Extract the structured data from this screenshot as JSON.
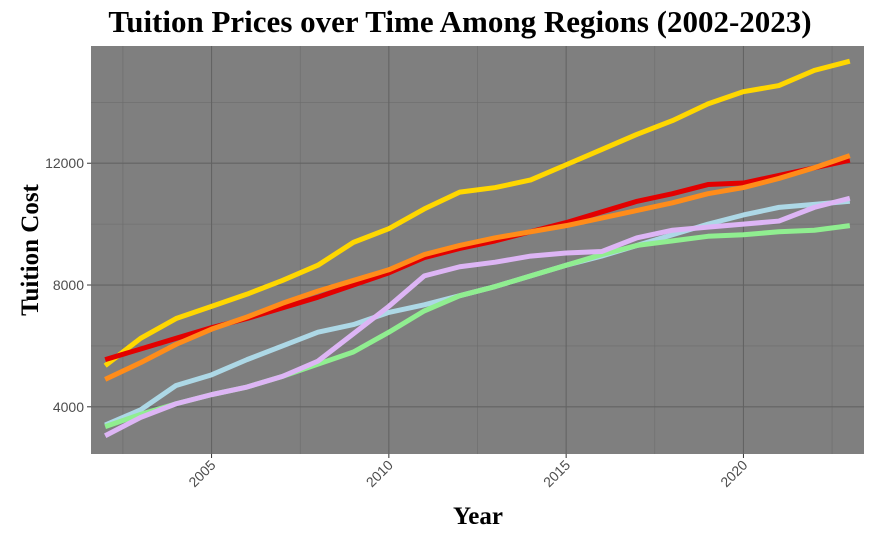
{
  "chart_data": {
    "type": "line",
    "title": "Tuition Prices over Time Among Regions (2002-2023)",
    "xlabel": "Year",
    "ylabel": "Tuition Cost",
    "xlim": [
      2001.6,
      2023.4
    ],
    "ylim": [
      2450,
      15850
    ],
    "xticks": [
      2005,
      2010,
      2015,
      2020
    ],
    "yticks": [
      4000,
      8000,
      12000
    ],
    "grid": true,
    "legend": "none",
    "panel_background": "#7f7f7f",
    "x": [
      2002,
      2003,
      2004,
      2005,
      2006,
      2007,
      2008,
      2009,
      2010,
      2011,
      2012,
      2013,
      2014,
      2015,
      2016,
      2017,
      2018,
      2019,
      2020,
      2021,
      2022,
      2023
    ],
    "series": [
      {
        "color": "#FFD700",
        "values": [
          5350,
          6250,
          6900,
          7300,
          7700,
          8150,
          8650,
          9400,
          9850,
          10500,
          11050,
          11200,
          11450,
          11950,
          12450,
          12950,
          13400,
          13950,
          14350,
          14550,
          15050,
          15350
        ]
      },
      {
        "color": "#E30000",
        "values": [
          5550,
          5900,
          6250,
          6600,
          6900,
          7250,
          7600,
          8000,
          8400,
          8900,
          9200,
          9450,
          9750,
          10050,
          10400,
          10750,
          11000,
          11300,
          11350,
          11600,
          11850,
          12100
        ]
      },
      {
        "color": "#FF8C1A",
        "values": [
          4900,
          5450,
          6050,
          6550,
          6950,
          7400,
          7800,
          8150,
          8500,
          9000,
          9300,
          9550,
          9750,
          9950,
          10200,
          10450,
          10700,
          11000,
          11200,
          11500,
          11850,
          12250
        ]
      },
      {
        "color": "#ADD8E6",
        "values": [
          3400,
          3900,
          4700,
          5050,
          5550,
          6000,
          6450,
          6700,
          7100,
          7350,
          7650,
          7950,
          8300,
          8650,
          8950,
          9300,
          9650,
          10000,
          10300,
          10550,
          10650,
          10750
        ]
      },
      {
        "color": "#90EE90",
        "values": [
          3350,
          3750,
          4100,
          4400,
          4650,
          5000,
          5400,
          5800,
          6450,
          7150,
          7650,
          7950,
          8300,
          8650,
          9000,
          9300,
          9450,
          9600,
          9650,
          9750,
          9800,
          9950
        ]
      },
      {
        "color": "#DDB5F5",
        "values": [
          3050,
          3650,
          4100,
          4400,
          4650,
          5000,
          5500,
          6400,
          7300,
          8300,
          8600,
          8750,
          8950,
          9050,
          9100,
          9550,
          9800,
          9900,
          10000,
          10100,
          10550,
          10850
        ]
      }
    ]
  }
}
